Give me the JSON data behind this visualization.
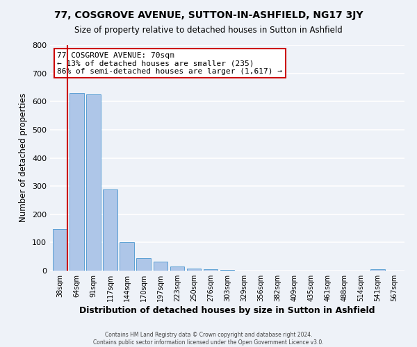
{
  "title": "77, COSGROVE AVENUE, SUTTON-IN-ASHFIELD, NG17 3JY",
  "subtitle": "Size of property relative to detached houses in Sutton in Ashfield",
  "xlabel": "Distribution of detached houses by size in Sutton in Ashfield",
  "ylabel": "Number of detached properties",
  "bin_labels": [
    "38sqm",
    "64sqm",
    "91sqm",
    "117sqm",
    "144sqm",
    "170sqm",
    "197sqm",
    "223sqm",
    "250sqm",
    "276sqm",
    "303sqm",
    "329sqm",
    "356sqm",
    "382sqm",
    "409sqm",
    "435sqm",
    "461sqm",
    "488sqm",
    "514sqm",
    "541sqm",
    "567sqm"
  ],
  "bar_values": [
    148,
    630,
    625,
    288,
    100,
    45,
    31,
    15,
    7,
    5,
    2,
    0,
    0,
    0,
    0,
    0,
    0,
    0,
    0,
    5,
    0
  ],
  "bar_color": "#aec6e8",
  "bar_edge_color": "#5a9fd4",
  "vline_color": "#cc0000",
  "annotation_title": "77 COSGROVE AVENUE: 70sqm",
  "annotation_line1": "← 13% of detached houses are smaller (235)",
  "annotation_line2": "86% of semi-detached houses are larger (1,617) →",
  "annotation_box_color": "#ffffff",
  "annotation_box_edge": "#cc0000",
  "ylim": [
    0,
    800
  ],
  "yticks": [
    0,
    100,
    200,
    300,
    400,
    500,
    600,
    700,
    800
  ],
  "footer1": "Contains HM Land Registry data © Crown copyright and database right 2024.",
  "footer2": "Contains public sector information licensed under the Open Government Licence v3.0.",
  "bg_color": "#eef2f8"
}
